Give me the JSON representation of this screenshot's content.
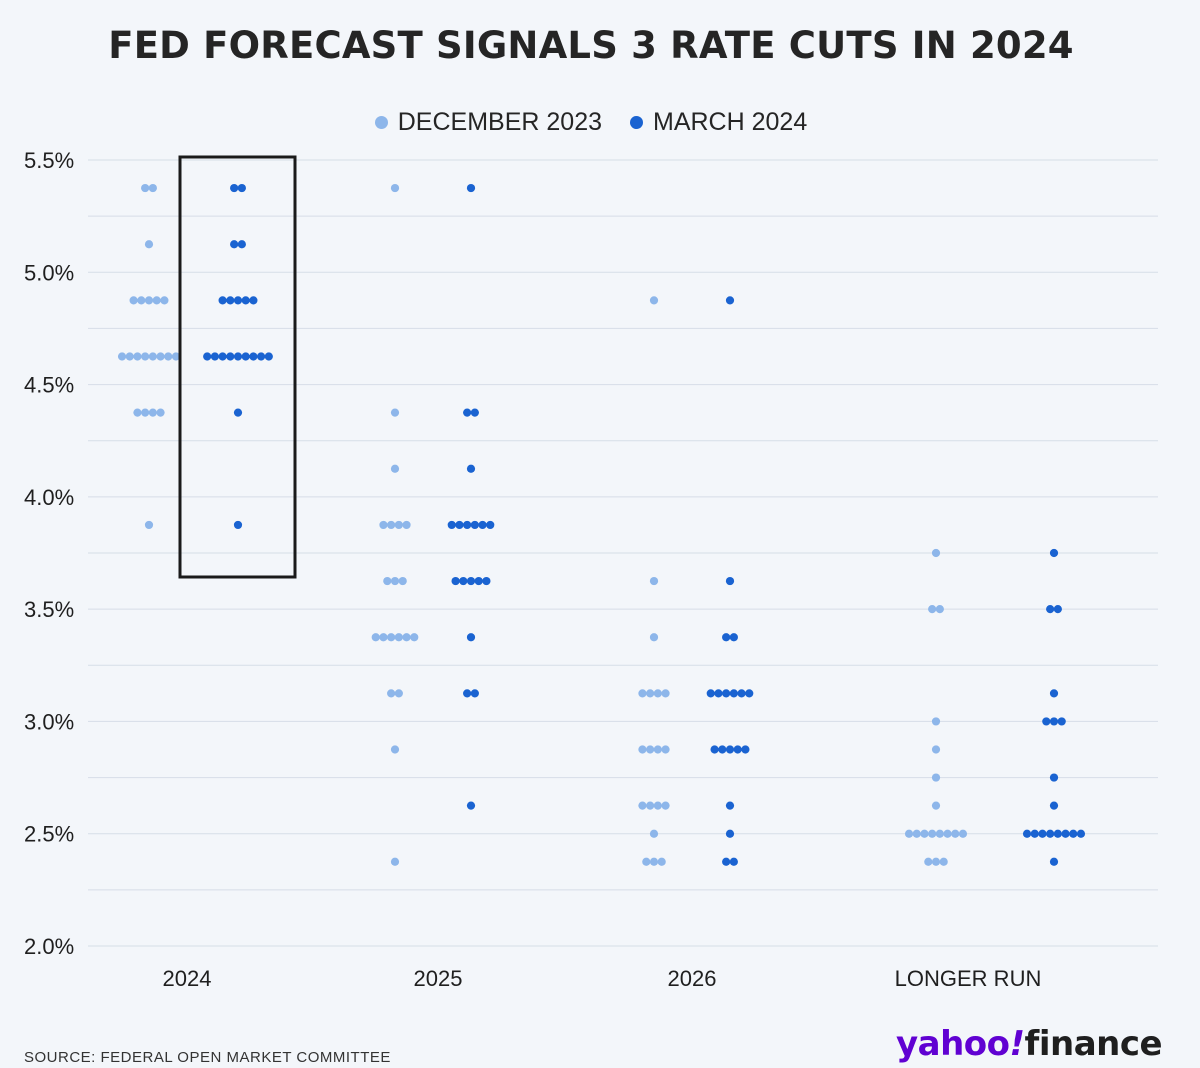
{
  "title": "FED FORECAST SIGNALS 3 RATE CUTS IN 2024",
  "colors": {
    "december": "#8db6ea",
    "march": "#1a63d1",
    "grid": "#d6dde7",
    "highlight_box": "#1a1a1a"
  },
  "source": "SOURCE: FEDERAL OPEN MARKET COMMITTEE",
  "logo": {
    "part1": "yahoo",
    "part2": "!",
    "part3": "finance"
  },
  "chart_data": {
    "type": "scatter",
    "title": "FED FORECAST SIGNALS 3 RATE CUTS IN 2024",
    "xlabel": "",
    "ylabel": "",
    "ylim": [
      2.0,
      5.5
    ],
    "y_ticks": [
      "2.0%",
      "2.5%",
      "3.0%",
      "3.5%",
      "4.0%",
      "4.5%",
      "5.0%",
      "5.5%"
    ],
    "y_tick_values": [
      2.0,
      2.5,
      3.0,
      3.5,
      4.0,
      4.5,
      5.0,
      5.5
    ],
    "grid": true,
    "legend_position": "top-center",
    "highlight": {
      "category": "2024",
      "series": "MARCH 2024"
    },
    "categories": [
      "2024",
      "2025",
      "2026",
      "LONGER RUN"
    ],
    "series": [
      {
        "name": "DECEMBER 2023",
        "color": "#8db6ea",
        "dots": [
          [
            [
              5.375,
              2
            ],
            [
              5.125,
              1
            ],
            [
              4.875,
              5
            ],
            [
              4.625,
              8
            ],
            [
              4.375,
              4
            ],
            [
              3.875,
              1
            ]
          ],
          [
            [
              5.375,
              1
            ],
            [
              4.375,
              1
            ],
            [
              4.125,
              1
            ],
            [
              3.875,
              4
            ],
            [
              3.625,
              3
            ],
            [
              3.375,
              6
            ],
            [
              3.125,
              2
            ],
            [
              2.875,
              1
            ],
            [
              2.375,
              1
            ]
          ],
          [
            [
              4.875,
              1
            ],
            [
              3.625,
              1
            ],
            [
              3.375,
              1
            ],
            [
              3.125,
              4
            ],
            [
              2.875,
              4
            ],
            [
              2.625,
              4
            ],
            [
              2.5,
              1
            ],
            [
              2.375,
              3
            ]
          ],
          [
            [
              3.75,
              1
            ],
            [
              3.5,
              2
            ],
            [
              3.0,
              1
            ],
            [
              2.875,
              1
            ],
            [
              2.75,
              1
            ],
            [
              2.625,
              1
            ],
            [
              2.5,
              8
            ],
            [
              2.375,
              3
            ]
          ]
        ]
      },
      {
        "name": "MARCH 2024",
        "color": "#1a63d1",
        "dots": [
          [
            [
              5.375,
              2
            ],
            [
              5.125,
              2
            ],
            [
              4.875,
              5
            ],
            [
              4.625,
              9
            ],
            [
              4.375,
              1
            ],
            [
              3.875,
              1
            ]
          ],
          [
            [
              5.375,
              1
            ],
            [
              4.375,
              2
            ],
            [
              4.125,
              1
            ],
            [
              3.875,
              6
            ],
            [
              3.625,
              5
            ],
            [
              3.375,
              1
            ],
            [
              3.125,
              2
            ],
            [
              2.625,
              1
            ]
          ],
          [
            [
              4.875,
              1
            ],
            [
              3.625,
              1
            ],
            [
              3.375,
              2
            ],
            [
              3.125,
              6
            ],
            [
              2.875,
              5
            ],
            [
              2.625,
              1
            ],
            [
              2.5,
              1
            ],
            [
              2.375,
              2
            ]
          ],
          [
            [
              3.75,
              1
            ],
            [
              3.5,
              2
            ],
            [
              3.125,
              1
            ],
            [
              3.0,
              3
            ],
            [
              2.75,
              1
            ],
            [
              2.625,
              1
            ],
            [
              2.5,
              8
            ],
            [
              2.375,
              1
            ]
          ]
        ]
      }
    ]
  }
}
